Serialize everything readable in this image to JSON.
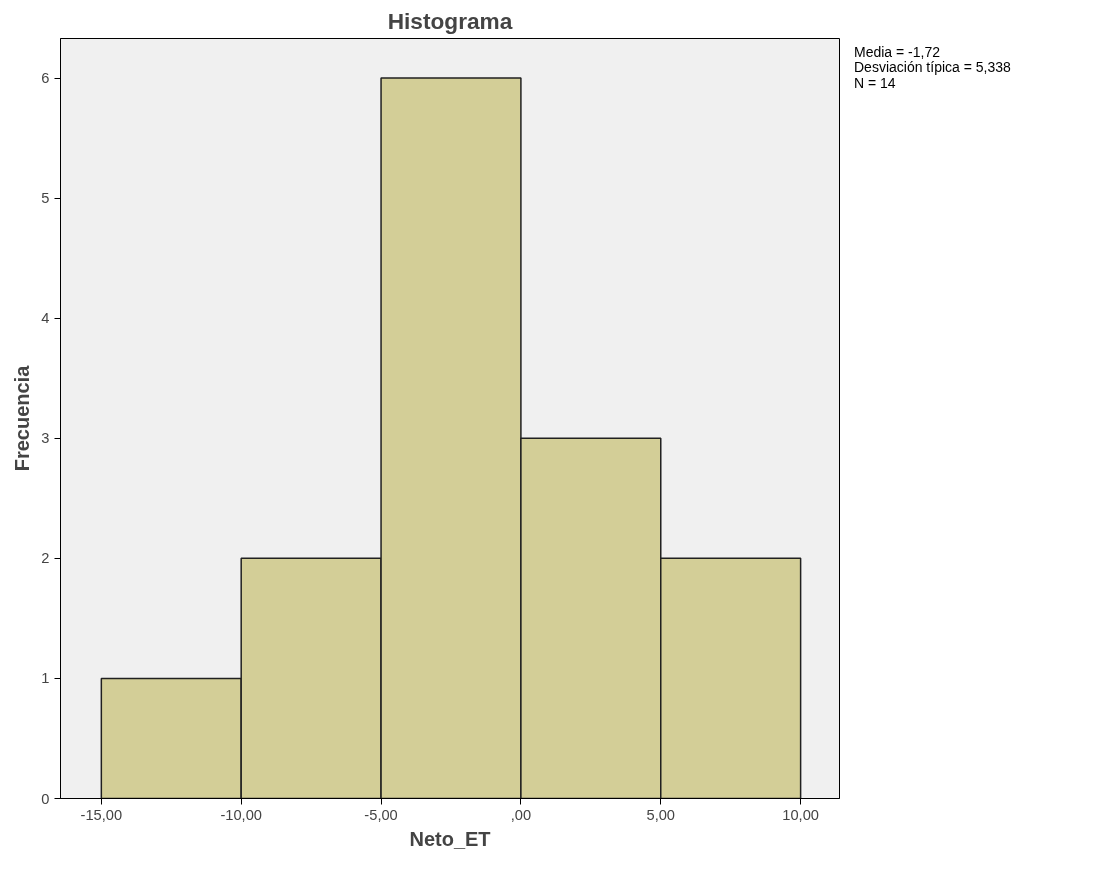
{
  "chart_data": {
    "type": "histogram",
    "title": "Histograma",
    "xlabel": "Neto_ET",
    "ylabel": "Frecuencia",
    "bins": [
      -15,
      -10,
      -5,
      0,
      5,
      10
    ],
    "values": [
      1,
      2,
      6,
      3,
      2
    ],
    "color": "#d3ce97",
    "xlim": [
      -16.46,
      11.39
    ],
    "ylim": [
      0,
      6.33
    ],
    "xticks": [
      {
        "value": -15,
        "label": "-15,00"
      },
      {
        "value": -10,
        "label": "-10,00"
      },
      {
        "value": -5,
        "label": "-5,00"
      },
      {
        "value": 0,
        "label": ",00"
      },
      {
        "value": 5,
        "label": "5,00"
      },
      {
        "value": 10,
        "label": "10,00"
      }
    ],
    "yticks": [
      0,
      1,
      2,
      3,
      4,
      5,
      6
    ],
    "grid": false,
    "annotations": [
      "Media = -1,72",
      "Desviación típica = 5,338",
      "N = 14"
    ]
  }
}
